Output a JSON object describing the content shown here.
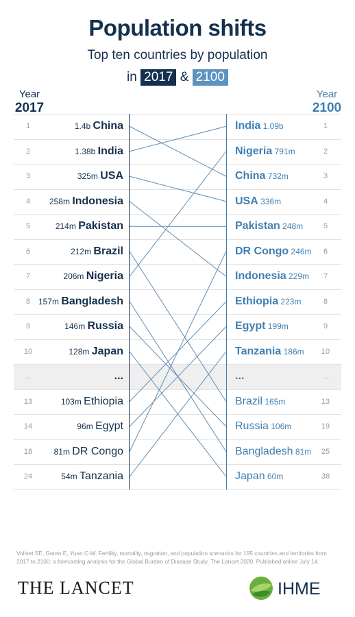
{
  "header": {
    "title": "Population shifts",
    "subtitle": "Top ten countries by population",
    "subtitle_prefix": "in",
    "year_a": "2017",
    "joiner": "&",
    "year_b": "2100"
  },
  "columns": {
    "left_label": "Year",
    "left_year": "2017",
    "right_label": "Year",
    "right_year": "2100"
  },
  "chart_data": {
    "type": "table",
    "left": [
      {
        "rank": "1",
        "pop": "1.4b",
        "name": "China",
        "bold": true
      },
      {
        "rank": "2",
        "pop": "1.38b",
        "name": "India",
        "bold": true
      },
      {
        "rank": "3",
        "pop": "325m",
        "name": "USA",
        "bold": true
      },
      {
        "rank": "4",
        "pop": "258m",
        "name": "Indonesia",
        "bold": true
      },
      {
        "rank": "5",
        "pop": "214m",
        "name": "Pakistan",
        "bold": true
      },
      {
        "rank": "6",
        "pop": "212m",
        "name": "Brazil",
        "bold": true
      },
      {
        "rank": "7",
        "pop": "206m",
        "name": "Nigeria",
        "bold": true
      },
      {
        "rank": "8",
        "pop": "157m",
        "name": "Bangladesh",
        "bold": true
      },
      {
        "rank": "9",
        "pop": "146m",
        "name": "Russia",
        "bold": true
      },
      {
        "rank": "10",
        "pop": "128m",
        "name": "Japan",
        "bold": true
      },
      {
        "rank": "...",
        "pop": "",
        "name": "...",
        "bold": true,
        "gap": true
      },
      {
        "rank": "13",
        "pop": "103m",
        "name": "Ethiopia",
        "bold": false
      },
      {
        "rank": "14",
        "pop": "96m",
        "name": "Egypt",
        "bold": false
      },
      {
        "rank": "18",
        "pop": "81m",
        "name": "DR Congo",
        "bold": false
      },
      {
        "rank": "24",
        "pop": "54m",
        "name": "Tanzania",
        "bold": false
      }
    ],
    "right": [
      {
        "rank": "1",
        "pop": "1.09b",
        "name": "India",
        "bold": true
      },
      {
        "rank": "2",
        "pop": "791m",
        "name": "Nigeria",
        "bold": true
      },
      {
        "rank": "3",
        "pop": "732m",
        "name": "China",
        "bold": true
      },
      {
        "rank": "4",
        "pop": "336m",
        "name": "USA",
        "bold": true
      },
      {
        "rank": "5",
        "pop": "248m",
        "name": "Pakistan",
        "bold": true
      },
      {
        "rank": "6",
        "pop": "246m",
        "name": "DR Congo",
        "bold": true
      },
      {
        "rank": "7",
        "pop": "229m",
        "name": "Indonesia",
        "bold": true
      },
      {
        "rank": "8",
        "pop": "223m",
        "name": "Ethiopia",
        "bold": true
      },
      {
        "rank": "9",
        "pop": "199m",
        "name": "Egypt",
        "bold": true
      },
      {
        "rank": "10",
        "pop": "186m",
        "name": "Tanzania",
        "bold": true
      },
      {
        "rank": "...",
        "pop": "",
        "name": "...",
        "bold": true,
        "gap": true
      },
      {
        "rank": "13",
        "pop": "165m",
        "name": "Brazil",
        "bold": false
      },
      {
        "rank": "19",
        "pop": "106m",
        "name": "Russia",
        "bold": false
      },
      {
        "rank": "25",
        "pop": "81m",
        "name": "Bangladesh",
        "bold": false
      },
      {
        "rank": "38",
        "pop": "60m",
        "name": "Japan",
        "bold": false
      }
    ],
    "links": [
      {
        "country": "China",
        "rank_2017": "1",
        "rank_2100": "3"
      },
      {
        "country": "India",
        "rank_2017": "2",
        "rank_2100": "1"
      },
      {
        "country": "USA",
        "rank_2017": "3",
        "rank_2100": "4"
      },
      {
        "country": "Indonesia",
        "rank_2017": "4",
        "rank_2100": "7"
      },
      {
        "country": "Pakistan",
        "rank_2017": "5",
        "rank_2100": "5"
      },
      {
        "country": "Brazil",
        "rank_2017": "6",
        "rank_2100": "13"
      },
      {
        "country": "Nigeria",
        "rank_2017": "7",
        "rank_2100": "2"
      },
      {
        "country": "Bangladesh",
        "rank_2017": "8",
        "rank_2100": "25"
      },
      {
        "country": "Russia",
        "rank_2017": "9",
        "rank_2100": "19"
      },
      {
        "country": "Japan",
        "rank_2017": "10",
        "rank_2100": "38"
      },
      {
        "country": "Ethiopia",
        "rank_2017": "13",
        "rank_2100": "8"
      },
      {
        "country": "Egypt",
        "rank_2017": "14",
        "rank_2100": "9"
      },
      {
        "country": "DR Congo",
        "rank_2017": "18",
        "rank_2100": "6"
      },
      {
        "country": "Tanzania",
        "rank_2017": "24",
        "rank_2100": "10"
      }
    ]
  },
  "colors": {
    "navy": "#14304e",
    "blue": "#3f7fb2",
    "badge_light": "#5d93bf",
    "line": "#5f8db4"
  },
  "footer": {
    "source": "Vollset SE, Goren E, Yuan C-W. Fertility, mortality, migration, and population scenarios for 195 countries and territories from 2017 to 2100: a forecasting analysis for the Global Burden of Disease Study. The Lancet 2020. Published online July 14.",
    "lancet_logo": "THE LANCET",
    "ihme_logo": "IHME",
    "ihme_icon": "globe-leaf-icon"
  }
}
